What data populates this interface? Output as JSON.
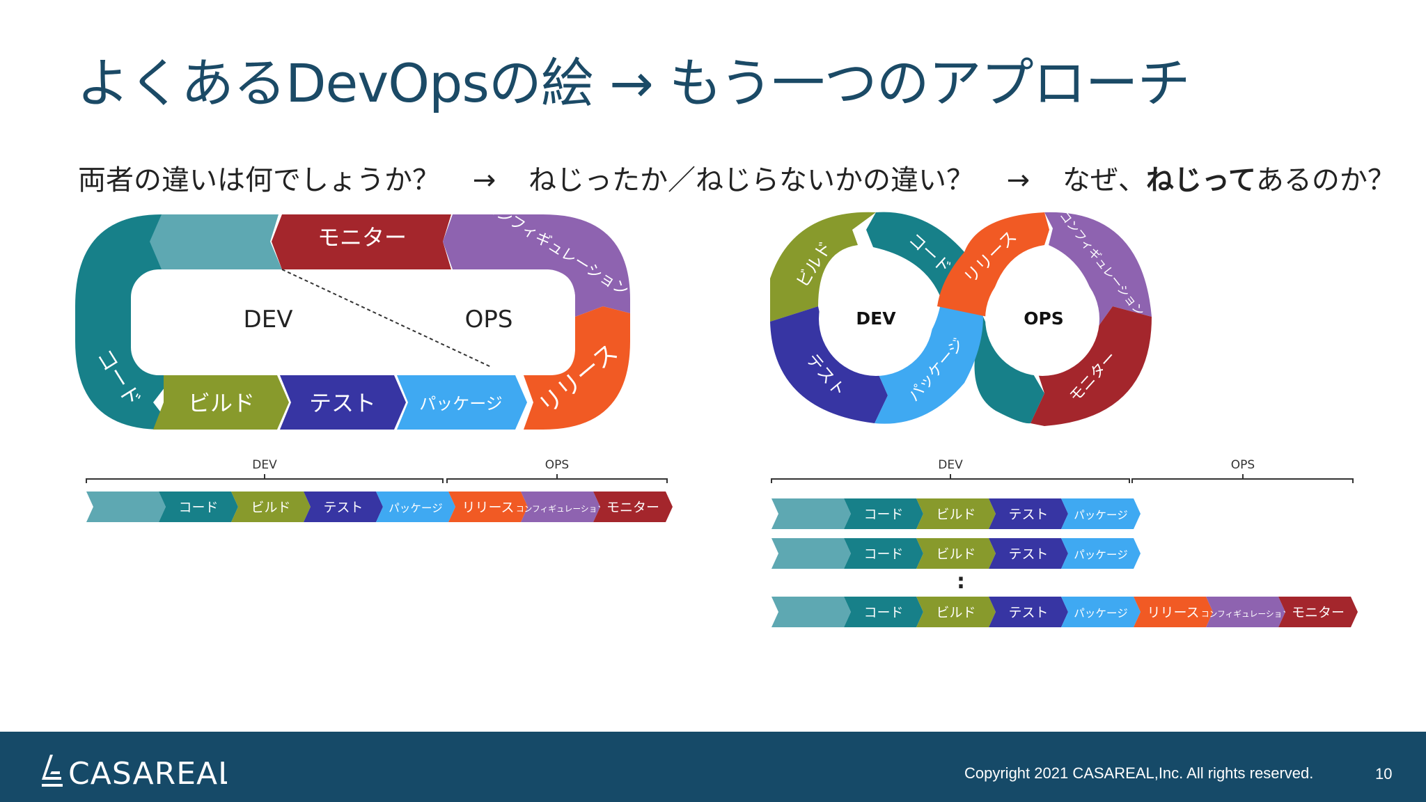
{
  "slide": {
    "title": "よくあるDevOpsの絵 → もう一つのアプローチ",
    "subtitle_parts": [
      "両者の違いは何でしょうか？",
      "→",
      "ねじったか／ねじらないかの違い？",
      "→",
      "なぜ、",
      "ねじって",
      "あるのか？"
    ],
    "copyright": "Copyright 2021 CASAREAL,Inc. All rights reserved.",
    "page_number": "10",
    "logo_text": "CASAREAL"
  },
  "colors": {
    "teal_light": "#5ea8b2",
    "teal": "#178089",
    "olive": "#889a2c",
    "indigo": "#3735a3",
    "sky": "#3fa9f2",
    "orange": "#f15a24",
    "purple": "#8e63b0",
    "red": "#a4262c",
    "title": "#1b4a66",
    "footer": "#164a68"
  },
  "left_diagram": {
    "inner_labels": {
      "dev": "DEV",
      "ops": "OPS"
    },
    "segments": {
      "code": "コード",
      "build": "ビルド",
      "test": "テスト",
      "package": "パッケージ",
      "release": "リリース",
      "config": "コンフィギュレーション",
      "monitor": "モニター"
    },
    "timeline": {
      "dev": "DEV",
      "ops": "OPS",
      "labels": [
        "コード",
        "ビルド",
        "テスト",
        "パッケージ",
        "リリース",
        "コンフィギュレーション",
        "モニター"
      ]
    }
  },
  "right_diagram": {
    "inner_labels": {
      "dev": "DEV",
      "ops": "OPS"
    },
    "segments": {
      "build": "ビルド",
      "code": "コード",
      "release": "リリース",
      "config": "コンフィギュレーション",
      "test": "テスト",
      "package": "パッケージ",
      "monitor": "モニター"
    },
    "timeline": {
      "dev": "DEV",
      "ops": "OPS",
      "ellipsis": ":",
      "rows": [
        [
          "コード",
          "ビルド",
          "テスト",
          "パッケージ"
        ],
        [
          "コード",
          "ビルド",
          "テスト",
          "パッケージ"
        ],
        [
          "コード",
          "ビルド",
          "テスト",
          "パッケージ",
          "リリース",
          "コンフィギュレーション",
          "モニター"
        ]
      ]
    }
  }
}
